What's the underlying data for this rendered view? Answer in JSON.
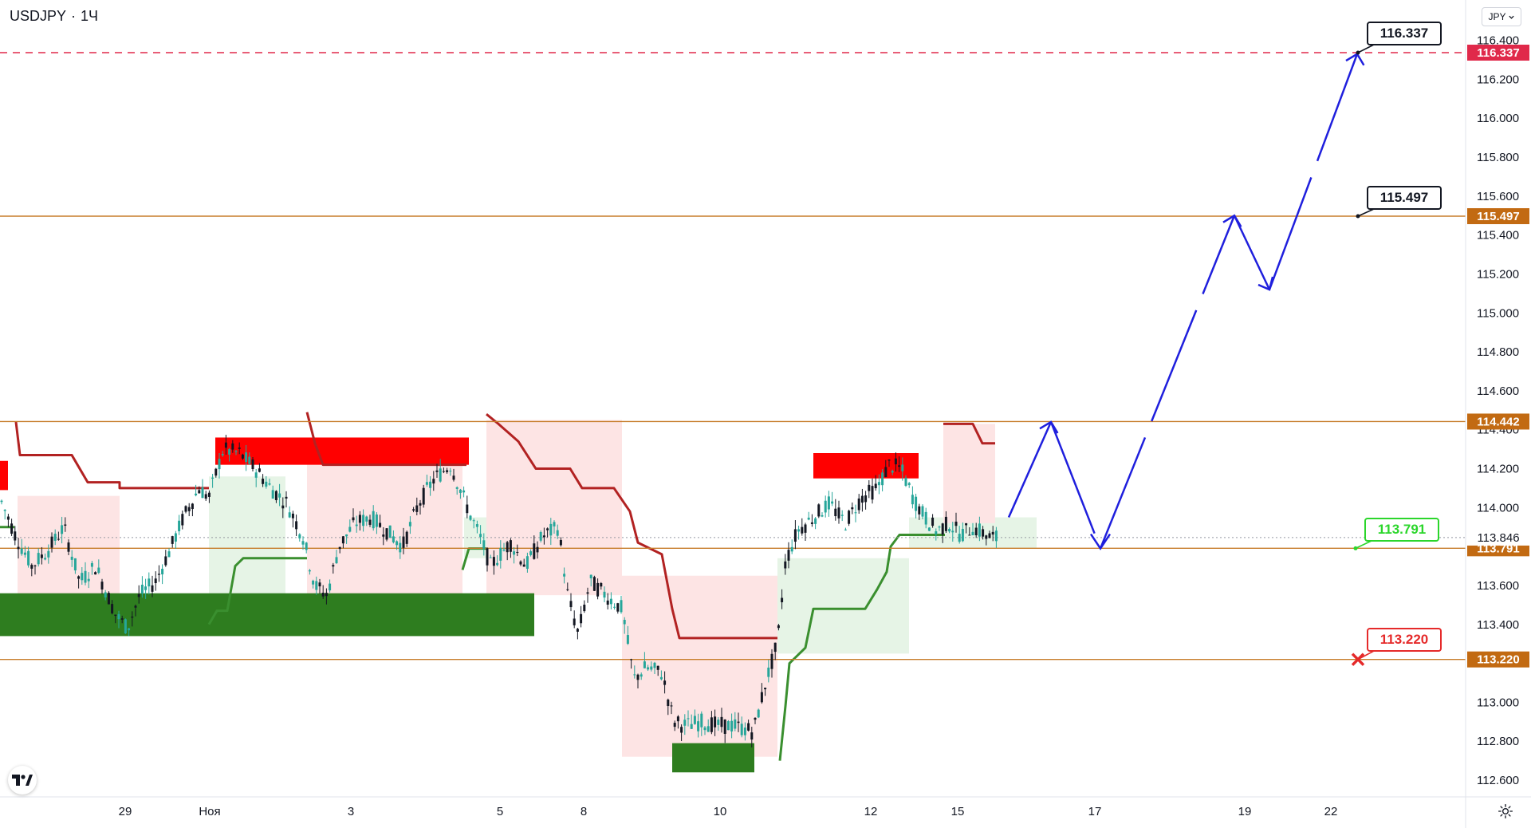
{
  "header": {
    "symbol": "USDJPY",
    "separator": "·",
    "interval": "1Ч"
  },
  "currency_selector": {
    "label": "JPY",
    "icon": "chevron-down-icon"
  },
  "logo": {
    "icon": "tradingview-logo-icon",
    "text": "TV"
  },
  "settings": {
    "icon": "gear-icon"
  },
  "chart_data": {
    "type": "candlestick",
    "symbol": "USDJPY",
    "interval": "1Ч",
    "y_range": [
      112.5,
      116.5
    ],
    "y_ticks": [
      "116.400",
      "116.200",
      "116.000",
      "115.800",
      "115.600",
      "115.400",
      "115.200",
      "115.000",
      "114.800",
      "114.600",
      "114.400",
      "114.200",
      "114.000",
      "113.800",
      "113.600",
      "113.400",
      "113.200",
      "113.000",
      "112.800",
      "112.600"
    ],
    "x_ticks": [
      "29",
      "Ноя",
      "3",
      "5",
      "8",
      "10",
      "12",
      "15",
      "17",
      "19",
      "22"
    ],
    "last_price": "113.846",
    "horizontal_levels": [
      {
        "value": 116.337,
        "label": "116.337",
        "style": "dashed",
        "color": "#e0294a"
      },
      {
        "value": 115.497,
        "label": "115.497",
        "style": "solid",
        "color": "#c77d2a"
      },
      {
        "value": 114.442,
        "label": "114.442",
        "style": "solid",
        "color": "#c77d2a"
      },
      {
        "value": 113.791,
        "label": "113.791",
        "style": "solid",
        "color": "#c77d2a"
      },
      {
        "value": 113.22,
        "label": "113.220",
        "style": "solid",
        "color": "#c77d2a"
      }
    ],
    "callouts": [
      {
        "text": "116.337",
        "color": "#131722",
        "marker": "dot"
      },
      {
        "text": "115.497",
        "color": "#131722",
        "marker": "dot"
      },
      {
        "text": "113.791",
        "color": "#2bd62b",
        "marker": "dot"
      },
      {
        "text": "113.220",
        "color": "#e52a2a",
        "marker": "cross"
      }
    ],
    "supply_zones": [
      {
        "from": 114.22,
        "to": 114.36
      },
      {
        "from": 114.15,
        "to": 114.28
      }
    ],
    "demand_zones": [
      {
        "from": 113.34,
        "to": 113.56
      },
      {
        "from": 112.64,
        "to": 112.79
      }
    ],
    "projection_path": [
      113.95,
      114.44,
      113.79,
      115.5,
      115.12,
      116.33
    ],
    "colors": {
      "up": "#26a69a",
      "down": "#131722",
      "supply": "#ff0000",
      "demand": "#2e7d1f",
      "resistance_line": "#b22222",
      "support_line": "#3a8f2f",
      "projection": "#1f1fdd",
      "level": "#c77d2a",
      "target": "#e0294a"
    }
  }
}
